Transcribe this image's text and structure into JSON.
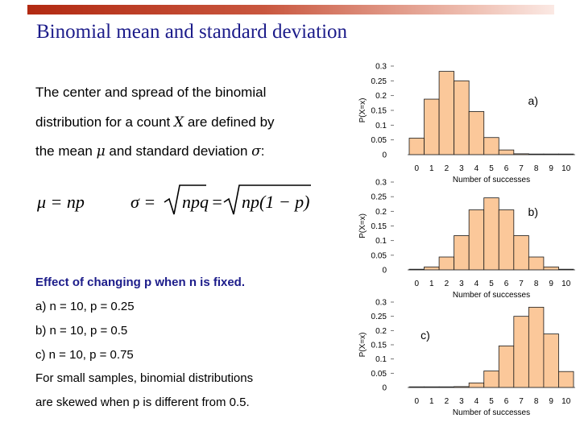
{
  "slide": {
    "title": "Binomial mean and standard deviation",
    "intro_line1": "The center and spread of the binomial",
    "intro_line2_a": "distribution for a count ",
    "intro_line2_sym": "X",
    "intro_line2_b": " are defined by",
    "intro_line3_a": "the mean ",
    "intro_line3_mu": "μ",
    "intro_line3_b": " and standard deviation ",
    "intro_line3_sigma": "σ",
    "intro_line3_c": ":",
    "formula_mean": "μ = np",
    "formula_sd_lhs": "σ =",
    "formula_sd_mid": "npq",
    "formula_sd_eq": "=",
    "formula_sd_rhs": "np(1 − p)",
    "effect_heading": "Effect of changing p when n is fixed.",
    "case_a": "a) n = 10, p = 0.25",
    "case_b": "b) n = 10, p = 0.5",
    "case_c": "c) n = 10, p = 0.75",
    "note_line1": "For small samples, binomial distributions",
    "note_line2": "are skewed when p is different from 0.5."
  },
  "chart_data": [
    {
      "type": "bar",
      "panel_label": "a)",
      "xlabel": "Number of successes",
      "ylabel": "P(X=x)",
      "categories": [
        "0",
        "1",
        "2",
        "3",
        "4",
        "5",
        "6",
        "7",
        "8",
        "9",
        "10"
      ],
      "values": [
        0.056,
        0.188,
        0.282,
        0.25,
        0.146,
        0.058,
        0.016,
        0.003,
        0.0004,
        3e-05,
        1e-06
      ],
      "yticks": [
        "0",
        "0.05",
        "0.1",
        "0.15",
        "0.2",
        "0.25",
        "0.3"
      ],
      "ylim": [
        0,
        0.3
      ],
      "bar_color": "#fbc89a"
    },
    {
      "type": "bar",
      "panel_label": "b)",
      "xlabel": "Number of successes",
      "ylabel": "P(X=x)",
      "categories": [
        "0",
        "1",
        "2",
        "3",
        "4",
        "5",
        "6",
        "7",
        "8",
        "9",
        "10"
      ],
      "values": [
        0.001,
        0.01,
        0.044,
        0.117,
        0.205,
        0.246,
        0.205,
        0.117,
        0.044,
        0.01,
        0.001
      ],
      "yticks": [
        "0",
        "0.05",
        "0.1",
        "0.15",
        "0.2",
        "0.25",
        "0.3"
      ],
      "ylim": [
        0,
        0.3
      ],
      "bar_color": "#fbc89a"
    },
    {
      "type": "bar",
      "panel_label": "c)",
      "xlabel": "Number of successes",
      "ylabel": "P(X=x)",
      "categories": [
        "0",
        "1",
        "2",
        "3",
        "4",
        "5",
        "6",
        "7",
        "8",
        "9",
        "10"
      ],
      "values": [
        1e-06,
        3e-05,
        0.0004,
        0.003,
        0.016,
        0.058,
        0.146,
        0.25,
        0.282,
        0.188,
        0.056
      ],
      "yticks": [
        "0",
        "0.05",
        "0.1",
        "0.15",
        "0.2",
        "0.25",
        "0.3"
      ],
      "ylim": [
        0,
        0.3
      ],
      "bar_color": "#fbc89a"
    }
  ]
}
